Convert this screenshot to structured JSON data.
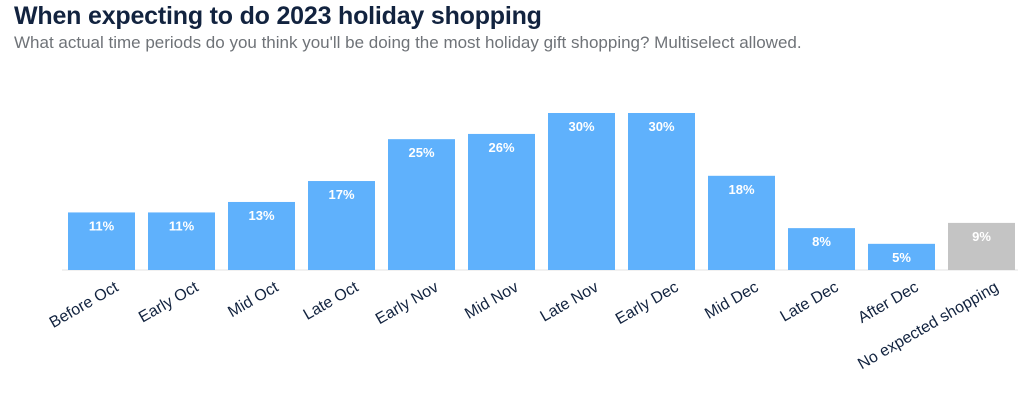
{
  "title": "When expecting to do 2023 holiday shopping",
  "subtitle": "What actual time periods do you think you'll be doing the most holiday gift shopping? Multiselect allowed.",
  "colors": {
    "primary_bar": "#5fb1fc",
    "muted_bar": "#c4c4c4",
    "label_text": "#12233f",
    "value_text": "#ffffff"
  },
  "chart_data": {
    "type": "bar",
    "categories": [
      "Before Oct",
      "Early Oct",
      "Mid Oct",
      "Late Oct",
      "Early Nov",
      "Mid Nov",
      "Late Nov",
      "Early Dec",
      "Mid Dec",
      "Late Dec",
      "After Dec",
      "No expected shopping"
    ],
    "values": [
      11,
      11,
      13,
      17,
      25,
      26,
      30,
      30,
      18,
      8,
      5,
      9
    ],
    "value_labels": [
      "11%",
      "11%",
      "13%",
      "17%",
      "25%",
      "26%",
      "30%",
      "30%",
      "18%",
      "8%",
      "5%",
      "9%"
    ],
    "highlight": [
      false,
      false,
      false,
      false,
      false,
      false,
      false,
      false,
      false,
      false,
      false,
      true
    ],
    "unit": "%",
    "ylim": [
      0,
      30
    ],
    "grid": false,
    "legend": "none"
  }
}
